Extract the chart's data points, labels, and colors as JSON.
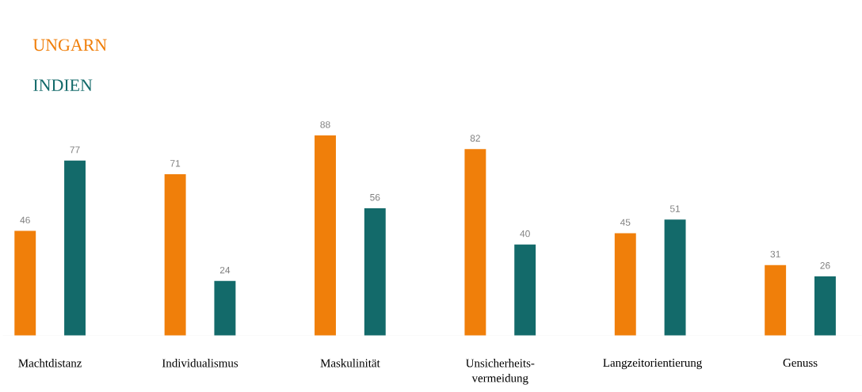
{
  "chart_data": {
    "type": "bar",
    "categories": [
      "Machtdistanz",
      "Individualismus",
      "Maskulinität",
      "Unsicherheits-vermeidung",
      "Langzeitorientierung",
      "Genuss"
    ],
    "series": [
      {
        "name": "UNGARN",
        "color": "#f07f0a",
        "values": [
          46,
          71,
          88,
          82,
          45,
          31
        ]
      },
      {
        "name": "INDIEN",
        "color": "#136a6a",
        "values": [
          77,
          24,
          56,
          40,
          51,
          26
        ]
      }
    ],
    "data_labels": true,
    "legend": "top left"
  }
}
